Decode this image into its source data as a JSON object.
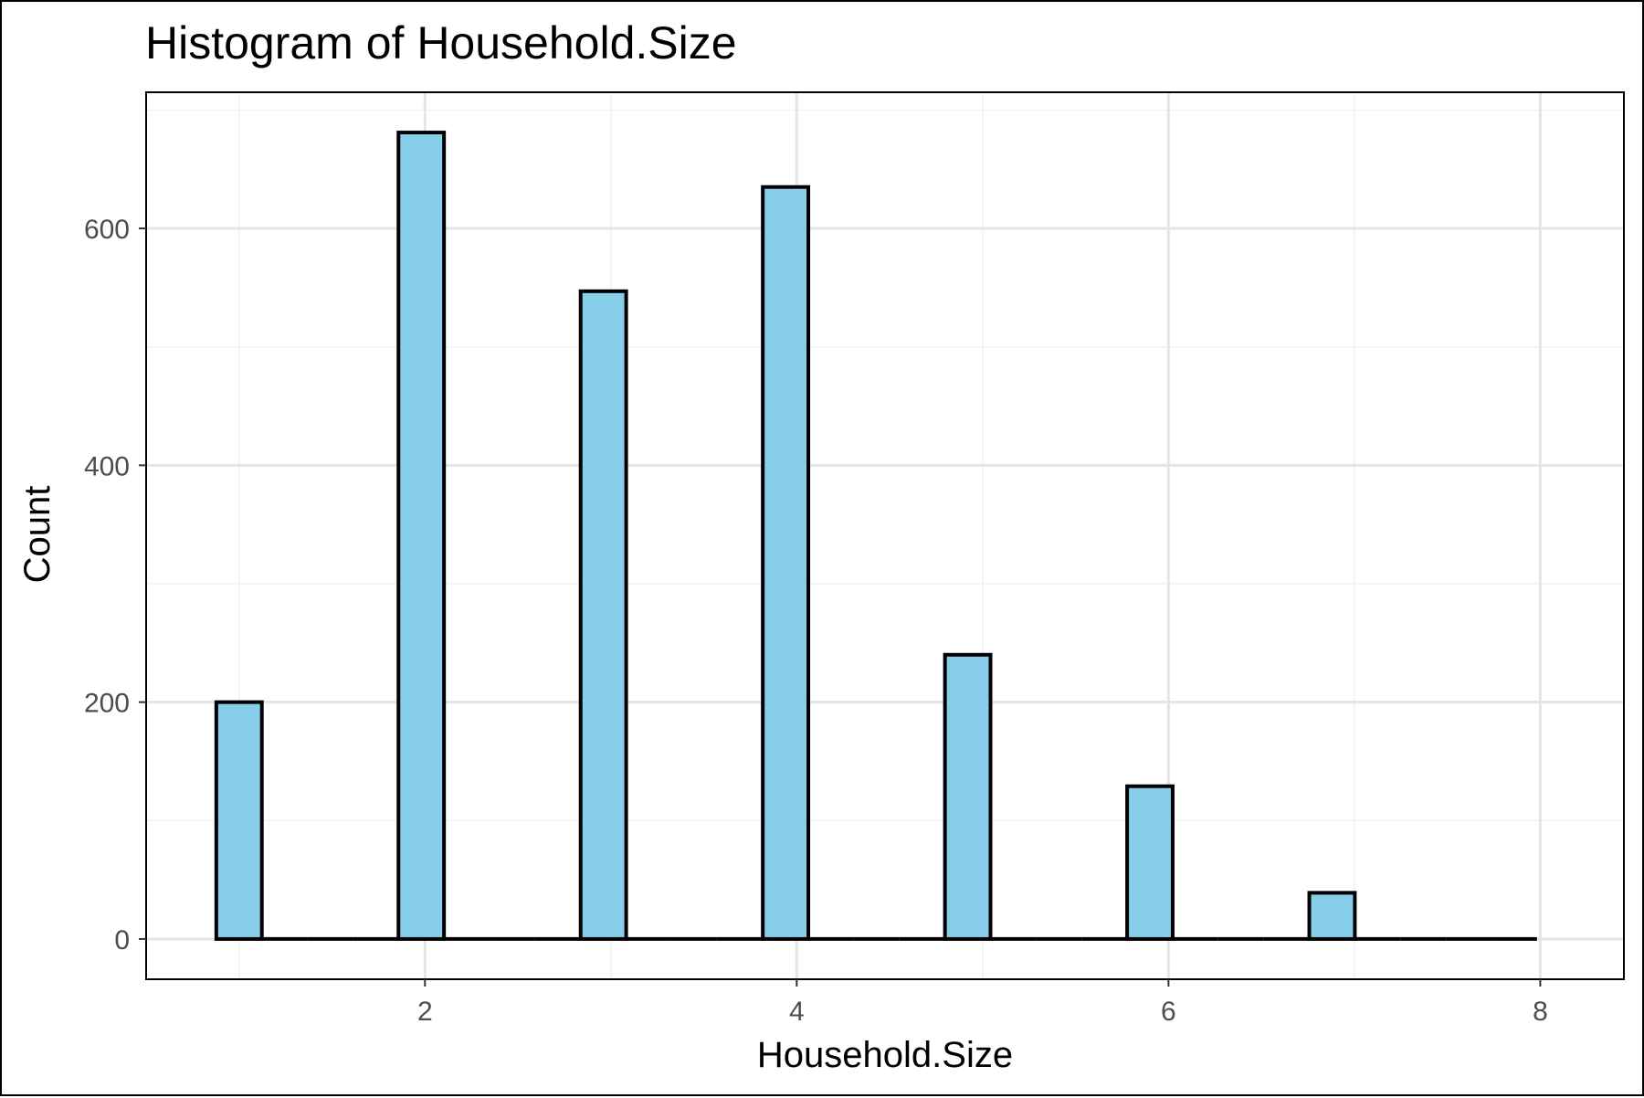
{
  "chart_data": {
    "type": "bar",
    "title": "Histogram of Household.Size",
    "xlabel": "Household.Size",
    "ylabel": "Count",
    "x": [
      1,
      2,
      3,
      4,
      5,
      6,
      7,
      8
    ],
    "values": [
      200,
      681,
      547,
      635,
      240,
      129,
      39,
      28
    ],
    "xlim": [
      0.5,
      8.45
    ],
    "ylim": [
      -34,
      715
    ],
    "x_ticks": [
      2,
      4,
      6,
      8
    ],
    "y_ticks": [
      0,
      200,
      400,
      600
    ],
    "grid": true,
    "legend": "none",
    "colors": {
      "bar_fill": "#87CEEB",
      "bar_stroke": "#000000",
      "grid_major": "#e5e5e5",
      "grid_minor": "#f2f2f2",
      "panel_border": "#000000",
      "tick_text": "#4d4d4d"
    }
  }
}
